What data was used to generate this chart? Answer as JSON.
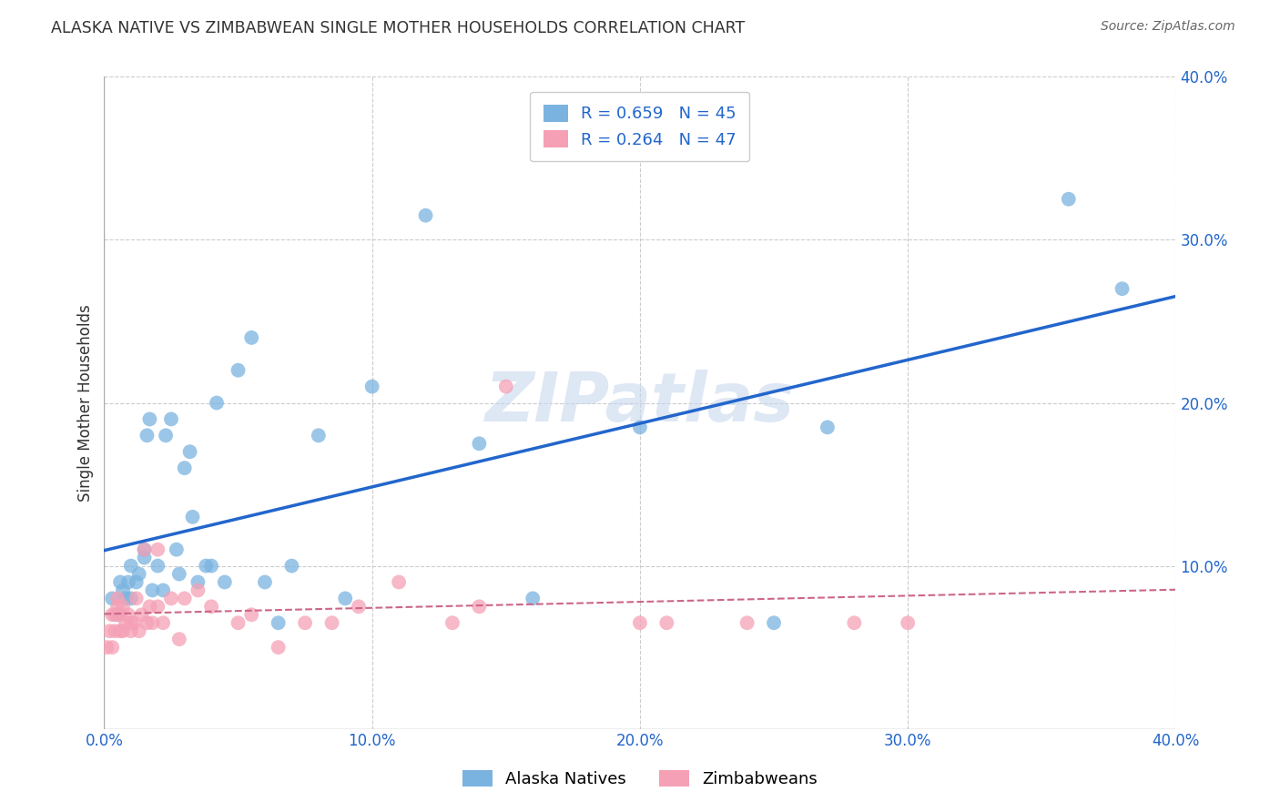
{
  "title": "ALASKA NATIVE VS ZIMBABWEAN SINGLE MOTHER HOUSEHOLDS CORRELATION CHART",
  "source": "Source: ZipAtlas.com",
  "ylabel": "Single Mother Households",
  "xlim": [
    0.0,
    0.4
  ],
  "ylim": [
    0.0,
    0.4
  ],
  "grid_color": "#cccccc",
  "background_color": "#ffffff",
  "alaska_color": "#7ab3e0",
  "zimbabwe_color": "#f5a0b5",
  "alaska_line_color": "#2266cc",
  "zimbabwe_line_color": "#cc6688",
  "alaska_R": 0.659,
  "alaska_N": 45,
  "zimbabwe_R": 0.264,
  "zimbabwe_N": 47,
  "legend_label_alaska": "Alaska Natives",
  "legend_label_zimbabwe": "Zimbabweans",
  "watermark": "ZIPatlas",
  "alaska_x": [
    0.003,
    0.005,
    0.006,
    0.007,
    0.008,
    0.009,
    0.01,
    0.01,
    0.012,
    0.013,
    0.015,
    0.015,
    0.016,
    0.017,
    0.018,
    0.02,
    0.022,
    0.023,
    0.025,
    0.027,
    0.028,
    0.03,
    0.032,
    0.033,
    0.035,
    0.038,
    0.04,
    0.042,
    0.045,
    0.05,
    0.055,
    0.06,
    0.065,
    0.07,
    0.08,
    0.09,
    0.1,
    0.12,
    0.14,
    0.16,
    0.2,
    0.25,
    0.27,
    0.36,
    0.38
  ],
  "alaska_y": [
    0.08,
    0.07,
    0.09,
    0.085,
    0.08,
    0.09,
    0.08,
    0.1,
    0.09,
    0.095,
    0.11,
    0.105,
    0.18,
    0.19,
    0.085,
    0.1,
    0.085,
    0.18,
    0.19,
    0.11,
    0.095,
    0.16,
    0.17,
    0.13,
    0.09,
    0.1,
    0.1,
    0.2,
    0.09,
    0.22,
    0.24,
    0.09,
    0.065,
    0.1,
    0.18,
    0.08,
    0.21,
    0.315,
    0.175,
    0.08,
    0.185,
    0.065,
    0.185,
    0.325,
    0.27
  ],
  "zimbabwe_x": [
    0.001,
    0.002,
    0.003,
    0.003,
    0.004,
    0.004,
    0.005,
    0.005,
    0.006,
    0.006,
    0.007,
    0.007,
    0.008,
    0.009,
    0.01,
    0.01,
    0.011,
    0.012,
    0.013,
    0.014,
    0.015,
    0.016,
    0.017,
    0.018,
    0.02,
    0.02,
    0.022,
    0.025,
    0.028,
    0.03,
    0.035,
    0.04,
    0.05,
    0.055,
    0.065,
    0.075,
    0.085,
    0.095,
    0.11,
    0.13,
    0.14,
    0.15,
    0.2,
    0.21,
    0.24,
    0.28,
    0.3
  ],
  "zimbabwe_y": [
    0.05,
    0.06,
    0.05,
    0.07,
    0.06,
    0.07,
    0.075,
    0.08,
    0.06,
    0.07,
    0.06,
    0.075,
    0.065,
    0.07,
    0.065,
    0.06,
    0.065,
    0.08,
    0.06,
    0.07,
    0.11,
    0.065,
    0.075,
    0.065,
    0.075,
    0.11,
    0.065,
    0.08,
    0.055,
    0.08,
    0.085,
    0.075,
    0.065,
    0.07,
    0.05,
    0.065,
    0.065,
    0.075,
    0.09,
    0.065,
    0.075,
    0.21,
    0.065,
    0.065,
    0.065,
    0.065,
    0.065
  ]
}
